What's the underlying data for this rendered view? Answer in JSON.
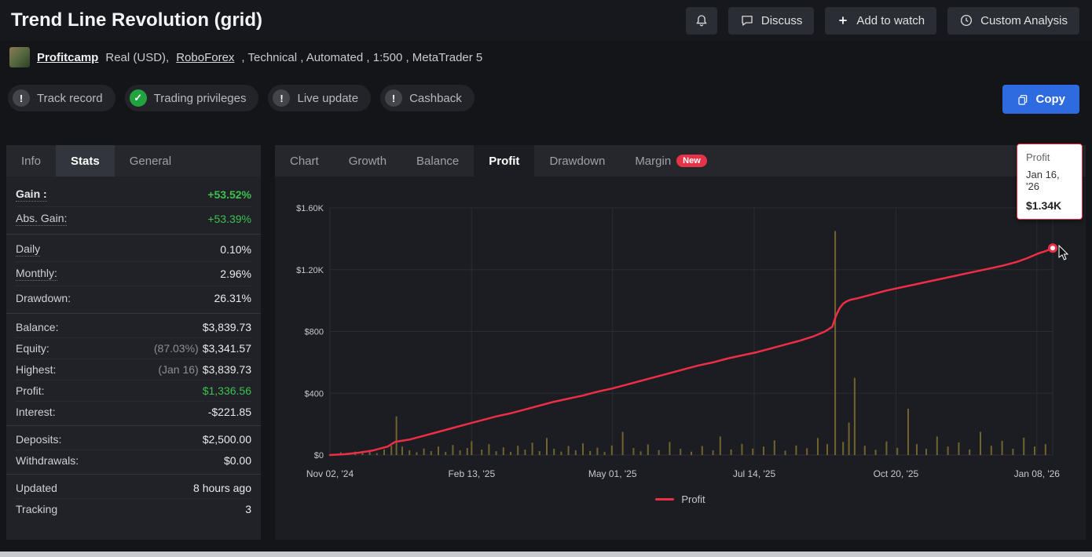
{
  "header": {
    "title": "Trend Line Revolution (grid)",
    "buttons": {
      "discuss": "Discuss",
      "add_to_watch": "Add to watch",
      "custom_analysis": "Custom Analysis"
    }
  },
  "profile": {
    "name": "Profitcamp",
    "account_type": "Real (USD),",
    "broker": "RoboForex",
    "meta": ", Technical , Automated , 1:500 , MetaTrader 5"
  },
  "badges": [
    {
      "label": "Track record",
      "status": "warning"
    },
    {
      "label": "Trading privileges",
      "status": "verified"
    },
    {
      "label": "Live update",
      "status": "warning"
    },
    {
      "label": "Cashback",
      "status": "warning"
    }
  ],
  "copy_button": {
    "label": "Copy"
  },
  "left_panel": {
    "tabs": [
      "Info",
      "Stats",
      "General"
    ],
    "active_tab": "Stats",
    "groups": [
      {
        "rows": [
          {
            "label": "Gain :",
            "value": "+53.52%"
          },
          {
            "label": "Abs. Gain:",
            "value": "+53.39%"
          }
        ]
      },
      {
        "rows": [
          {
            "label": "Daily",
            "value": "0.10%"
          },
          {
            "label": "Monthly:",
            "value": "2.96%"
          },
          {
            "label": "Drawdown:",
            "value": "26.31%"
          }
        ]
      },
      {
        "rows": [
          {
            "label": "Balance:",
            "value": "$3,839.73"
          },
          {
            "label": "Equity:",
            "prefix": "(87.03%)",
            "value": "$3,341.57"
          },
          {
            "label": "Highest:",
            "prefix": "(Jan 16)",
            "value": "$3,839.73"
          },
          {
            "label": "Profit:",
            "value": "$1,336.56"
          },
          {
            "label": "Interest:",
            "value": "-$221.85"
          }
        ]
      },
      {
        "rows": [
          {
            "label": "Deposits:",
            "value": "$2,500.00"
          },
          {
            "label": "Withdrawals:",
            "value": "$0.00"
          }
        ]
      },
      {
        "rows": [
          {
            "label": "Updated",
            "value": "8 hours ago"
          },
          {
            "label": "Tracking",
            "value": "3"
          }
        ]
      }
    ]
  },
  "right_panel": {
    "tabs": [
      "Chart",
      "Growth",
      "Balance",
      "Profit",
      "Drawdown",
      "Margin"
    ],
    "active_tab": "Profit",
    "new_badge": "New"
  },
  "tooltip": {
    "title": "Profit",
    "date": "Jan 16, '26",
    "value": "$1.34K"
  },
  "colors": {
    "accent_green": "#3cc14e",
    "copy_blue": "#2e6be0",
    "line_red": "#ee2e47",
    "bars_olive": "#7c6e2d",
    "new_badge_red": "#e5344a"
  },
  "chart_data": {
    "type": "line",
    "title": "Profit",
    "xlabel": "",
    "ylabel": "",
    "ylim": [
      0,
      1600
    ],
    "grid": true,
    "legend_position": "bottom",
    "y_ticks": [
      {
        "value": 0,
        "label": "$0"
      },
      {
        "value": 400,
        "label": "$400"
      },
      {
        "value": 800,
        "label": "$800"
      },
      {
        "value": 1200,
        "label": "$1.20K"
      },
      {
        "value": 1600,
        "label": "$1.60K"
      }
    ],
    "x_ticks": [
      {
        "pos": 0.0,
        "label": "Nov 02, '24"
      },
      {
        "pos": 0.196,
        "label": "Feb 13, '25"
      },
      {
        "pos": 0.391,
        "label": "May 01, '25"
      },
      {
        "pos": 0.587,
        "label": "Jul 14, '25"
      },
      {
        "pos": 0.783,
        "label": "Oct 20, '25"
      },
      {
        "pos": 0.978,
        "label": "Jan 08, '26"
      }
    ],
    "series": [
      {
        "name": "Profit",
        "color": "#ee2e47",
        "points": [
          [
            0,
            0
          ],
          [
            0.02,
            5
          ],
          [
            0.04,
            15
          ],
          [
            0.06,
            30
          ],
          [
            0.08,
            55
          ],
          [
            0.09,
            85
          ],
          [
            0.11,
            100
          ],
          [
            0.13,
            125
          ],
          [
            0.15,
            150
          ],
          [
            0.17,
            175
          ],
          [
            0.19,
            200
          ],
          [
            0.21,
            225
          ],
          [
            0.23,
            250
          ],
          [
            0.25,
            270
          ],
          [
            0.27,
            295
          ],
          [
            0.29,
            320
          ],
          [
            0.31,
            345
          ],
          [
            0.33,
            365
          ],
          [
            0.35,
            385
          ],
          [
            0.37,
            410
          ],
          [
            0.39,
            430
          ],
          [
            0.41,
            455
          ],
          [
            0.43,
            480
          ],
          [
            0.45,
            505
          ],
          [
            0.47,
            530
          ],
          [
            0.49,
            555
          ],
          [
            0.51,
            580
          ],
          [
            0.53,
            600
          ],
          [
            0.55,
            625
          ],
          [
            0.57,
            645
          ],
          [
            0.59,
            665
          ],
          [
            0.61,
            690
          ],
          [
            0.63,
            715
          ],
          [
            0.65,
            740
          ],
          [
            0.67,
            770
          ],
          [
            0.685,
            800
          ],
          [
            0.695,
            830
          ],
          [
            0.7,
            900
          ],
          [
            0.705,
            950
          ],
          [
            0.71,
            980
          ],
          [
            0.715,
            995
          ],
          [
            0.72,
            1005
          ],
          [
            0.73,
            1015
          ],
          [
            0.75,
            1040
          ],
          [
            0.77,
            1065
          ],
          [
            0.79,
            1085
          ],
          [
            0.81,
            1105
          ],
          [
            0.83,
            1125
          ],
          [
            0.85,
            1145
          ],
          [
            0.87,
            1165
          ],
          [
            0.89,
            1185
          ],
          [
            0.91,
            1205
          ],
          [
            0.93,
            1225
          ],
          [
            0.95,
            1250
          ],
          [
            0.965,
            1275
          ],
          [
            0.98,
            1305
          ],
          [
            0.99,
            1320
          ],
          [
            1.0,
            1340
          ]
        ]
      }
    ],
    "bars": {
      "color": "#7c6e2d",
      "values": [
        [
          0.015,
          18
        ],
        [
          0.025,
          10
        ],
        [
          0.035,
          22
        ],
        [
          0.045,
          14
        ],
        [
          0.055,
          28
        ],
        [
          0.065,
          12
        ],
        [
          0.075,
          35
        ],
        [
          0.085,
          60
        ],
        [
          0.092,
          250
        ],
        [
          0.1,
          55
        ],
        [
          0.11,
          30
        ],
        [
          0.12,
          18
        ],
        [
          0.13,
          42
        ],
        [
          0.14,
          25
        ],
        [
          0.15,
          55
        ],
        [
          0.16,
          20
        ],
        [
          0.17,
          65
        ],
        [
          0.18,
          30
        ],
        [
          0.19,
          45
        ],
        [
          0.196,
          90
        ],
        [
          0.21,
          35
        ],
        [
          0.22,
          70
        ],
        [
          0.23,
          25
        ],
        [
          0.24,
          50
        ],
        [
          0.25,
          20
        ],
        [
          0.26,
          60
        ],
        [
          0.27,
          35
        ],
        [
          0.28,
          80
        ],
        [
          0.29,
          25
        ],
        [
          0.3,
          110
        ],
        [
          0.31,
          40
        ],
        [
          0.32,
          22
        ],
        [
          0.33,
          58
        ],
        [
          0.34,
          30
        ],
        [
          0.35,
          75
        ],
        [
          0.36,
          26
        ],
        [
          0.37,
          48
        ],
        [
          0.38,
          20
        ],
        [
          0.39,
          62
        ],
        [
          0.405,
          150
        ],
        [
          0.42,
          45
        ],
        [
          0.43,
          24
        ],
        [
          0.44,
          68
        ],
        [
          0.455,
          32
        ],
        [
          0.47,
          85
        ],
        [
          0.485,
          40
        ],
        [
          0.5,
          22
        ],
        [
          0.515,
          58
        ],
        [
          0.53,
          30
        ],
        [
          0.54,
          120
        ],
        [
          0.555,
          36
        ],
        [
          0.57,
          72
        ],
        [
          0.585,
          42
        ],
        [
          0.6,
          55
        ],
        [
          0.615,
          95
        ],
        [
          0.63,
          28
        ],
        [
          0.645,
          62
        ],
        [
          0.66,
          44
        ],
        [
          0.675,
          110
        ],
        [
          0.688,
          70
        ],
        [
          0.699,
          1450
        ],
        [
          0.71,
          85
        ],
        [
          0.718,
          210
        ],
        [
          0.726,
          500
        ],
        [
          0.74,
          60
        ],
        [
          0.755,
          34
        ],
        [
          0.77,
          88
        ],
        [
          0.785,
          46
        ],
        [
          0.8,
          300
        ],
        [
          0.812,
          70
        ],
        [
          0.825,
          40
        ],
        [
          0.84,
          120
        ],
        [
          0.855,
          55
        ],
        [
          0.87,
          82
        ],
        [
          0.885,
          36
        ],
        [
          0.9,
          150
        ],
        [
          0.915,
          60
        ],
        [
          0.93,
          92
        ],
        [
          0.945,
          40
        ],
        [
          0.96,
          112
        ],
        [
          0.975,
          55
        ],
        [
          0.99,
          70
        ]
      ]
    }
  }
}
